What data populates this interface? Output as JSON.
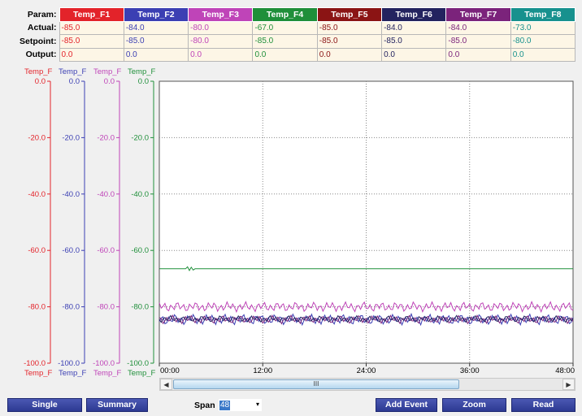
{
  "table": {
    "row_labels": {
      "param": "Param:",
      "actual": "Actual:",
      "setpoint": "Setpoint:",
      "output": "Output:"
    },
    "channels": [
      {
        "name": "Temp_F1",
        "color": "#e3232a",
        "actual": "-85.0",
        "setpoint": "-85.0",
        "output": "0.0",
        "value_color": "#e3232a"
      },
      {
        "name": "Temp_F2",
        "color": "#3b3fb3",
        "actual": "-84.0",
        "setpoint": "-85.0",
        "output": "0.0",
        "value_color": "#3b3fb3"
      },
      {
        "name": "Temp_F3",
        "color": "#bf44b8",
        "actual": "-80.0",
        "setpoint": "-80.0",
        "output": "0.0",
        "value_color": "#bf44b8"
      },
      {
        "name": "Temp_F4",
        "color": "#1f8f3a",
        "actual": "-67.0",
        "setpoint": "-85.0",
        "output": "0.0",
        "value_color": "#1f8f3a"
      },
      {
        "name": "Temp_F5",
        "color": "#8b1414",
        "actual": "-85.0",
        "setpoint": "-85.0",
        "output": "0.0",
        "value_color": "#8b1414"
      },
      {
        "name": "Temp_F6",
        "color": "#23235f",
        "actual": "-84.0",
        "setpoint": "-85.0",
        "output": "0.0",
        "value_color": "#23235f"
      },
      {
        "name": "Temp_F7",
        "color": "#7b237b",
        "actual": "-84.0",
        "setpoint": "-85.0",
        "output": "0.0",
        "value_color": "#7b237b"
      },
      {
        "name": "Temp_F8",
        "color": "#17918e",
        "actual": "-73.0",
        "setpoint": "-80.0",
        "output": "0.0",
        "value_color": "#17918e"
      }
    ]
  },
  "chart_data": {
    "type": "line",
    "y_axes": [
      {
        "top_label": "Temp_F",
        "bottom_label": "Temp_F",
        "color": "#e3232a",
        "ticks": [
          "0.0",
          "-20.0",
          "-40.0",
          "-60.0",
          "-80.0",
          "-100.0"
        ]
      },
      {
        "top_label": "Temp_F",
        "bottom_label": "Temp_F",
        "color": "#3b3fb3",
        "ticks": [
          "0.0",
          "-20.0",
          "-40.0",
          "-60.0",
          "-80.0",
          "-100.0"
        ]
      },
      {
        "top_label": "Temp_F",
        "bottom_label": "Temp_F",
        "color": "#bf44b8",
        "ticks": [
          "0.0",
          "-20.0",
          "-40.0",
          "-60.0",
          "-80.0",
          "-100.0"
        ]
      },
      {
        "top_label": "Temp_F",
        "bottom_label": "Temp_F",
        "color": "#1f8f3a",
        "ticks": [
          "0.0",
          "-20.0",
          "-40.0",
          "-60.0",
          "-80.0",
          "-100.0"
        ]
      }
    ],
    "y_ticks": [
      0,
      -20,
      -40,
      -60,
      -80,
      -100
    ],
    "ylim": [
      -100,
      0
    ],
    "xlim": [
      0,
      48
    ],
    "x_ticks": [
      {
        "value": 0,
        "label": "00:00"
      },
      {
        "value": 12,
        "label": "12:00"
      },
      {
        "value": 24,
        "label": "24:00"
      },
      {
        "value": 36,
        "label": "36:00"
      },
      {
        "value": 48,
        "label": "48:00"
      }
    ],
    "grid": true,
    "series": [
      {
        "color": "#1f8f3a",
        "base": -66.5,
        "noise": 0.3
      },
      {
        "color": "#bf44b8",
        "base": -80.0,
        "noise": 1.2
      },
      {
        "color": "#3b3fb3",
        "base": -84.5,
        "noise": 1.3
      },
      {
        "color": "#7b237b",
        "base": -84.5,
        "noise": 1.0
      },
      {
        "color": "#23235f",
        "base": -84.3,
        "noise": 0.8
      }
    ]
  },
  "scrollbar": {
    "left_arrow": "◀",
    "right_arrow": "▶",
    "thumb_grip": "III"
  },
  "toolbar": {
    "single_label": "Single",
    "summary_label": "Summary",
    "span_label": "Span",
    "span_value": "48",
    "span_arrow": "▾",
    "add_event_label": "Add Event",
    "zoom_label": "Zoom",
    "read_label": "Read"
  }
}
